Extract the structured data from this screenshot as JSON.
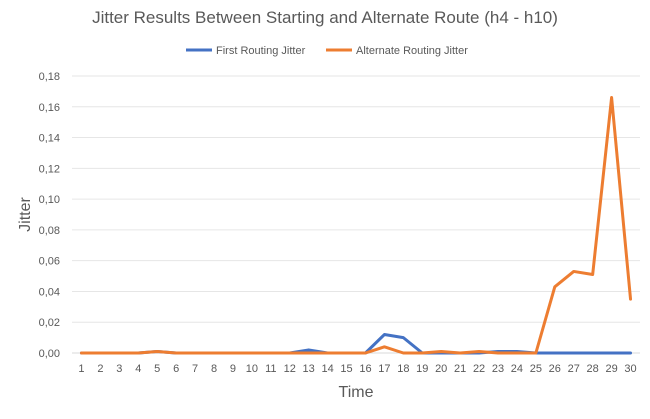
{
  "chart_data": {
    "type": "line",
    "title": "Jitter Results Between Starting and Alternate Route (h4 - h10)",
    "xlabel": "Time",
    "ylabel": "Jitter",
    "x": [
      1,
      2,
      3,
      4,
      5,
      6,
      7,
      8,
      9,
      10,
      11,
      12,
      13,
      14,
      15,
      16,
      17,
      18,
      19,
      20,
      21,
      22,
      23,
      24,
      25,
      26,
      27,
      28,
      29,
      30
    ],
    "ylim": [
      0,
      0.18
    ],
    "yticks": [
      "0,00",
      "0,02",
      "0,04",
      "0,06",
      "0,08",
      "0,10",
      "0,12",
      "0,14",
      "0,16",
      "0,18"
    ],
    "legend_position": "top",
    "grid": true,
    "series": [
      {
        "name": "First Routing Jitter",
        "color": "#4472c4",
        "values": [
          0,
          0,
          0,
          0,
          0.001,
          0,
          0,
          0,
          0,
          0,
          0,
          0,
          0.002,
          0,
          0,
          0,
          0.012,
          0.01,
          0,
          0,
          0,
          0,
          0.001,
          0.001,
          0,
          0,
          0,
          0,
          0,
          0
        ]
      },
      {
        "name": "Alternate Routing Jitter",
        "color": "#ed7d31",
        "values": [
          0,
          0,
          0,
          0,
          0.001,
          0,
          0,
          0,
          0,
          0,
          0,
          0,
          0,
          0,
          0,
          0,
          0.004,
          0,
          0,
          0.001,
          0,
          0.001,
          0,
          0,
          0,
          0.043,
          0.053,
          0.051,
          0.166,
          0.035
        ]
      }
    ]
  }
}
